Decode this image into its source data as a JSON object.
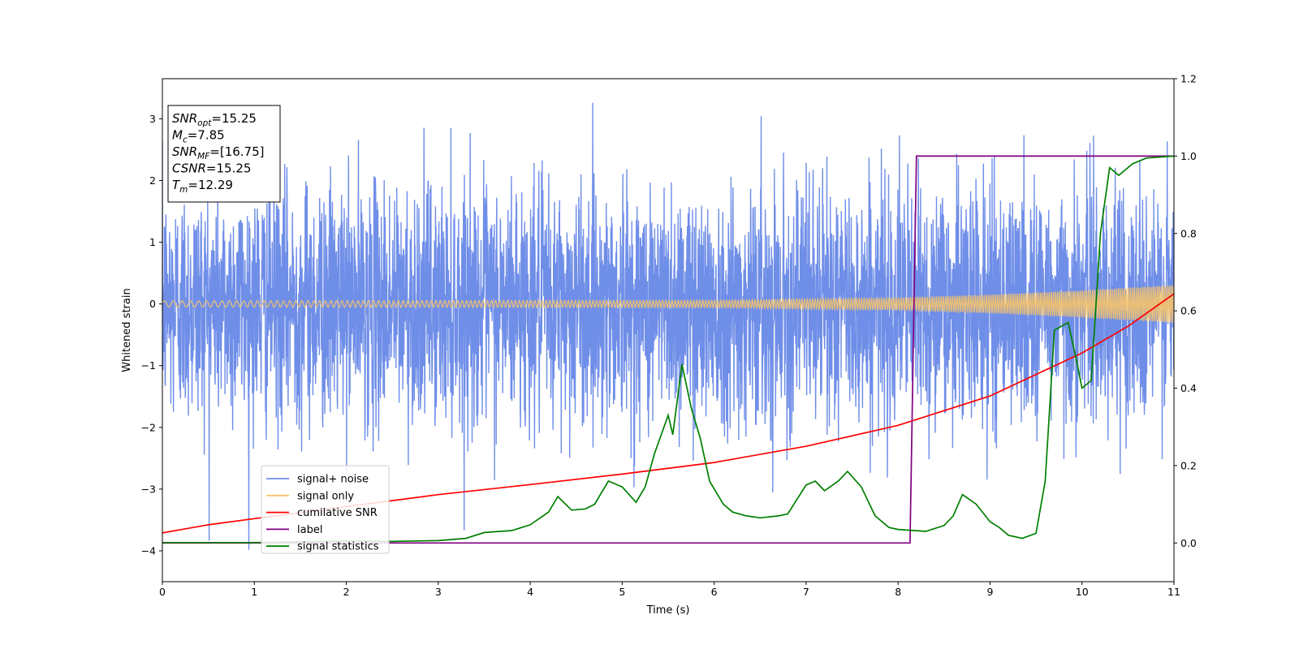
{
  "chart_data": {
    "type": "line",
    "xlabel": "Time (s)",
    "ylabel": "Whitened strain",
    "xlim": [
      0,
      11
    ],
    "ylim": [
      -4.5,
      3.65
    ],
    "y2lim": [
      -0.1,
      1.2
    ],
    "x_ticks": [
      "0",
      "1",
      "2",
      "3",
      "4",
      "5",
      "6",
      "7",
      "8",
      "9",
      "10",
      "11"
    ],
    "y_ticks": [
      "3",
      "2",
      "1",
      "0",
      "−1",
      "−2",
      "−3",
      "−4"
    ],
    "y2_ticks": [
      "1.2",
      "1.0",
      "0.8",
      "0.6",
      "0.4",
      "0.2",
      "0.0"
    ],
    "grid": false,
    "legend_position": "lower-left",
    "annotation": {
      "lines": [
        {
          "main": "SNR",
          "sub": "opt",
          "rest": "=15.25"
        },
        {
          "main": "M",
          "sub": "c",
          "rest": "=7.85"
        },
        {
          "main": "SNR",
          "sub": "MF",
          "rest": "=[16.75]"
        },
        {
          "main": "CSNR",
          "sub": "",
          "rest": "=15.25"
        },
        {
          "main": "T",
          "sub": "m",
          "rest": "=12.29"
        }
      ]
    },
    "series": [
      {
        "name": "signal+ noise",
        "axis": "left",
        "color": "#6f8ee8",
        "description": "whitened strain, noise with std ~0.95 around 0 over full range",
        "noise_std": 0.95,
        "peak_max": 3.3,
        "peak_min": -4.2
      },
      {
        "name": "signal only",
        "axis": "left",
        "color": "#f5c36b",
        "description": "chirp, amplitude ~0.05 rising to ~0.3 at t=11",
        "amplitude_points": [
          [
            0,
            0.05
          ],
          [
            6,
            0.06
          ],
          [
            8,
            0.1
          ],
          [
            9,
            0.15
          ],
          [
            10,
            0.22
          ],
          [
            11,
            0.31
          ]
        ]
      },
      {
        "name": "cumilative SNR",
        "axis": "right",
        "color": "#ff0000",
        "points": [
          [
            0,
            0.026
          ],
          [
            0.5,
            0.047
          ],
          [
            1,
            0.063
          ],
          [
            2,
            0.094
          ],
          [
            3,
            0.125
          ],
          [
            4,
            0.151
          ],
          [
            5,
            0.178
          ],
          [
            6,
            0.208
          ],
          [
            7,
            0.25
          ],
          [
            8,
            0.304
          ],
          [
            9,
            0.38
          ],
          [
            10,
            0.491
          ],
          [
            10.5,
            0.56
          ],
          [
            11,
            0.644
          ]
        ]
      },
      {
        "name": "label",
        "axis": "right",
        "color": "#800080",
        "points": [
          [
            0,
            0.0
          ],
          [
            8.13,
            0.0
          ],
          [
            8.2,
            1.0
          ],
          [
            11,
            1.0
          ]
        ]
      },
      {
        "name": "signal statistics",
        "axis": "right",
        "color": "#008000",
        "points": [
          [
            0,
            0.001
          ],
          [
            1,
            0.001
          ],
          [
            2,
            0.005
          ],
          [
            2.5,
            0.004
          ],
          [
            3,
            0.006
          ],
          [
            3.3,
            0.012
          ],
          [
            3.5,
            0.027
          ],
          [
            3.8,
            0.032
          ],
          [
            4.0,
            0.047
          ],
          [
            4.2,
            0.08
          ],
          [
            4.3,
            0.12
          ],
          [
            4.45,
            0.085
          ],
          [
            4.6,
            0.088
          ],
          [
            4.7,
            0.1
          ],
          [
            4.85,
            0.16
          ],
          [
            5.0,
            0.145
          ],
          [
            5.15,
            0.105
          ],
          [
            5.25,
            0.145
          ],
          [
            5.35,
            0.23
          ],
          [
            5.5,
            0.33
          ],
          [
            5.55,
            0.28
          ],
          [
            5.65,
            0.462
          ],
          [
            5.75,
            0.35
          ],
          [
            5.85,
            0.27
          ],
          [
            5.95,
            0.16
          ],
          [
            6.1,
            0.1
          ],
          [
            6.2,
            0.08
          ],
          [
            6.35,
            0.07
          ],
          [
            6.5,
            0.065
          ],
          [
            6.7,
            0.07
          ],
          [
            6.8,
            0.075
          ],
          [
            7.0,
            0.15
          ],
          [
            7.1,
            0.16
          ],
          [
            7.2,
            0.135
          ],
          [
            7.35,
            0.16
          ],
          [
            7.45,
            0.185
          ],
          [
            7.6,
            0.145
          ],
          [
            7.75,
            0.07
          ],
          [
            7.9,
            0.04
          ],
          [
            8.0,
            0.035
          ],
          [
            8.3,
            0.03
          ],
          [
            8.5,
            0.045
          ],
          [
            8.6,
            0.07
          ],
          [
            8.7,
            0.125
          ],
          [
            8.85,
            0.1
          ],
          [
            9.0,
            0.055
          ],
          [
            9.1,
            0.04
          ],
          [
            9.2,
            0.02
          ],
          [
            9.35,
            0.012
          ],
          [
            9.5,
            0.025
          ],
          [
            9.6,
            0.16
          ],
          [
            9.7,
            0.55
          ],
          [
            9.85,
            0.57
          ],
          [
            9.95,
            0.46
          ],
          [
            10.0,
            0.4
          ],
          [
            10.1,
            0.42
          ],
          [
            10.2,
            0.8
          ],
          [
            10.3,
            0.97
          ],
          [
            10.4,
            0.95
          ],
          [
            10.55,
            0.98
          ],
          [
            10.7,
            0.995
          ],
          [
            11,
            1.0
          ]
        ]
      }
    ]
  }
}
